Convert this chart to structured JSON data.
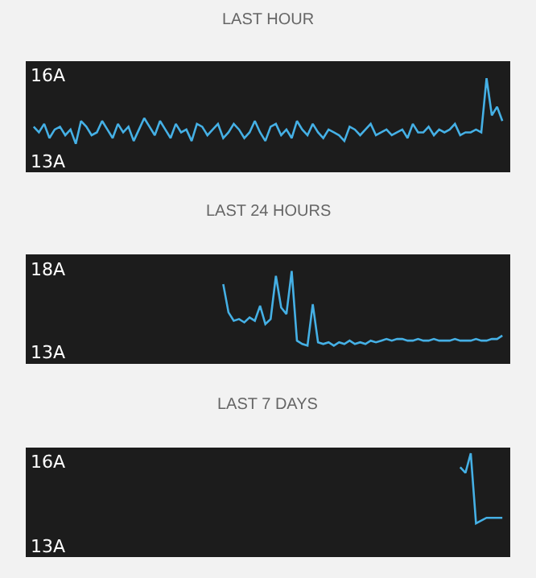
{
  "chart_data": [
    {
      "type": "line",
      "title": "LAST HOUR",
      "tick_labels": "y",
      "grid": false,
      "ylim": [
        12.6,
        16.5
      ],
      "yticks": [
        {
          "value": 16,
          "label": "16A"
        },
        {
          "value": 13,
          "label": "13A"
        }
      ],
      "categories": [
        null,
        null,
        null,
        null,
        null,
        null,
        null,
        null,
        null,
        null,
        null,
        null,
        null,
        null,
        null,
        null,
        null,
        null,
        null,
        null,
        null,
        null,
        null,
        null,
        null,
        null,
        null,
        null,
        null,
        null,
        null,
        null,
        null,
        null,
        null,
        null,
        null,
        null,
        null,
        null,
        null,
        null,
        null,
        null,
        null,
        null,
        null,
        null,
        null,
        null,
        null,
        null,
        null,
        null,
        null,
        null,
        null,
        null,
        null,
        null,
        null,
        null,
        null,
        null,
        null,
        null,
        null,
        null,
        null,
        null,
        null,
        null,
        null,
        null,
        null,
        null,
        null,
        null,
        null,
        null,
        null,
        null,
        null,
        null,
        null,
        null,
        null,
        null,
        null,
        null
      ],
      "series": [
        {
          "color": "#45b0e5",
          "values": [
            14.2,
            14.0,
            14.3,
            13.8,
            14.1,
            14.2,
            13.9,
            14.1,
            13.6,
            14.4,
            14.2,
            13.9,
            14.0,
            14.4,
            14.1,
            13.8,
            14.3,
            14.0,
            14.2,
            13.7,
            14.1,
            14.5,
            14.2,
            13.9,
            14.4,
            14.1,
            13.8,
            14.3,
            14.0,
            14.1,
            13.7,
            14.3,
            14.2,
            13.9,
            14.1,
            14.3,
            13.8,
            14.0,
            14.3,
            14.1,
            13.8,
            14.0,
            14.4,
            14.0,
            13.7,
            14.2,
            14.3,
            13.9,
            14.1,
            13.8,
            14.4,
            14.1,
            13.9,
            14.3,
            14.0,
            13.8,
            14.1,
            14.0,
            13.9,
            13.7,
            14.2,
            14.1,
            13.9,
            14.1,
            14.3,
            13.9,
            14.0,
            14.1,
            13.9,
            14.0,
            14.1,
            13.8,
            14.3,
            14.0,
            14.0,
            14.2,
            13.9,
            14.1,
            14.0,
            14.1,
            14.3,
            13.9,
            14.0,
            14.0,
            14.1,
            14.0,
            15.9,
            14.6,
            14.9,
            14.4
          ]
        }
      ]
    },
    {
      "type": "line",
      "title": "LAST 24 HOURS",
      "tick_labels": "y",
      "grid": false,
      "ylim": [
        12.3,
        18.9
      ],
      "yticks": [
        {
          "value": 18,
          "label": "18A"
        },
        {
          "value": 13,
          "label": "13A"
        }
      ],
      "categories": [
        null,
        null,
        null,
        null,
        null,
        null,
        null,
        null,
        null,
        null,
        null,
        null,
        null,
        null,
        null,
        null,
        null,
        null,
        null,
        null,
        null,
        null,
        null,
        null,
        null,
        null,
        null,
        null,
        null,
        null,
        null,
        null,
        null,
        null,
        null,
        null,
        null,
        null,
        null,
        null,
        null,
        null,
        null,
        null,
        null,
        null,
        null,
        null,
        null,
        null,
        null,
        null,
        null,
        null,
        null,
        null,
        null,
        null,
        null,
        null,
        null,
        null,
        null,
        null,
        null,
        null,
        null,
        null,
        null,
        null,
        null,
        null,
        null,
        null,
        null,
        null,
        null,
        null,
        null,
        null,
        null,
        null,
        null,
        null,
        null,
        null,
        null,
        null,
        null,
        null
      ],
      "series": [
        {
          "color": "#45b0e5",
          "values": [
            null,
            null,
            null,
            null,
            null,
            null,
            null,
            null,
            null,
            null,
            null,
            null,
            null,
            null,
            null,
            null,
            null,
            null,
            null,
            null,
            null,
            null,
            null,
            null,
            null,
            null,
            null,
            null,
            null,
            null,
            null,
            null,
            null,
            null,
            null,
            null,
            17.1,
            15.4,
            14.9,
            15.0,
            14.8,
            15.1,
            14.9,
            15.8,
            14.7,
            15.0,
            17.6,
            15.7,
            15.3,
            17.9,
            13.7,
            13.5,
            13.4,
            15.9,
            13.6,
            13.5,
            13.6,
            13.4,
            13.6,
            13.5,
            13.7,
            13.5,
            13.6,
            13.5,
            13.7,
            13.6,
            13.7,
            13.8,
            13.7,
            13.8,
            13.8,
            13.7,
            13.7,
            13.8,
            13.7,
            13.7,
            13.8,
            13.7,
            13.7,
            13.7,
            13.8,
            13.7,
            13.7,
            13.7,
            13.8,
            13.7,
            13.7,
            13.8,
            13.8,
            14.0
          ]
        }
      ]
    },
    {
      "type": "line",
      "title": "LAST 7 DAYS",
      "tick_labels": "y",
      "grid": false,
      "ylim": [
        12.6,
        16.5
      ],
      "yticks": [
        {
          "value": 16,
          "label": "16A"
        },
        {
          "value": 13,
          "label": "13A"
        }
      ],
      "categories": [
        null,
        null,
        null,
        null,
        null,
        null,
        null,
        null,
        null,
        null,
        null,
        null,
        null,
        null,
        null,
        null,
        null,
        null,
        null,
        null,
        null,
        null,
        null,
        null,
        null,
        null,
        null,
        null,
        null,
        null,
        null,
        null,
        null,
        null,
        null,
        null,
        null,
        null,
        null,
        null,
        null,
        null,
        null,
        null,
        null,
        null,
        null,
        null,
        null,
        null,
        null,
        null,
        null,
        null,
        null,
        null,
        null,
        null,
        null,
        null,
        null,
        null,
        null,
        null,
        null,
        null,
        null,
        null,
        null,
        null,
        null,
        null,
        null,
        null,
        null,
        null,
        null,
        null,
        null,
        null,
        null,
        null,
        null,
        null,
        null,
        null,
        null,
        null,
        null,
        null
      ],
      "series": [
        {
          "color": "#45b0e5",
          "values": [
            null,
            null,
            null,
            null,
            null,
            null,
            null,
            null,
            null,
            null,
            null,
            null,
            null,
            null,
            null,
            null,
            null,
            null,
            null,
            null,
            null,
            null,
            null,
            null,
            null,
            null,
            null,
            null,
            null,
            null,
            null,
            null,
            null,
            null,
            null,
            null,
            null,
            null,
            null,
            null,
            null,
            null,
            null,
            null,
            null,
            null,
            null,
            null,
            null,
            null,
            null,
            null,
            null,
            null,
            null,
            null,
            null,
            null,
            null,
            null,
            null,
            null,
            null,
            null,
            null,
            null,
            null,
            null,
            null,
            null,
            null,
            null,
            null,
            null,
            null,
            null,
            null,
            null,
            null,
            null,
            null,
            15.8,
            15.6,
            16.3,
            13.8,
            13.9,
            14.0,
            14.0,
            14.0,
            14.0
          ]
        }
      ]
    }
  ]
}
